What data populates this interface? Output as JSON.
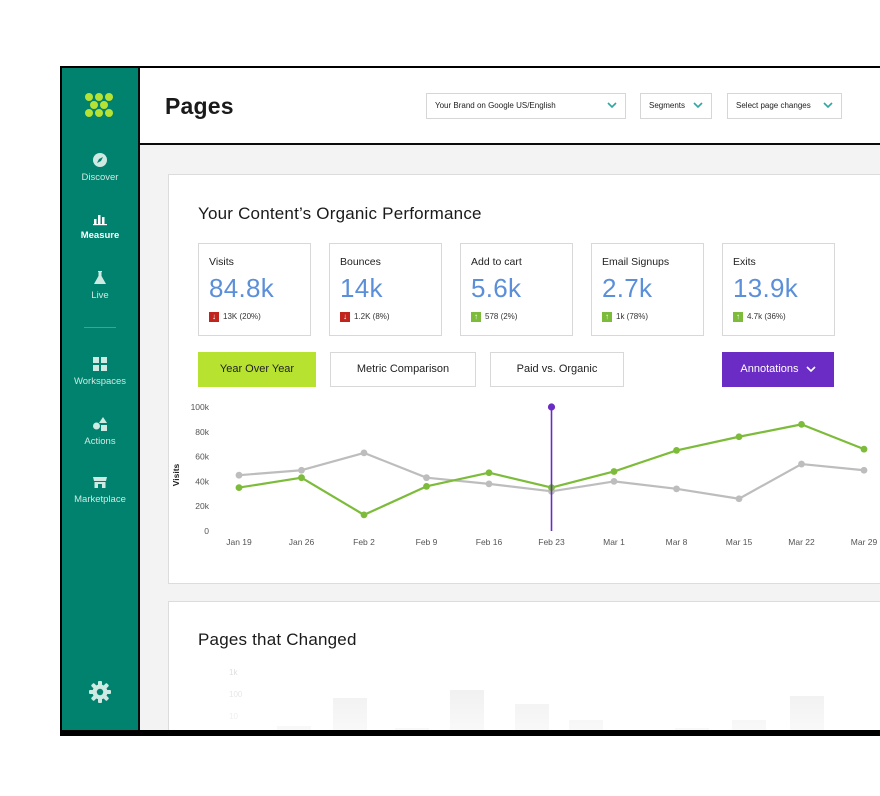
{
  "sidebar": {
    "items": [
      {
        "label": "Discover",
        "icon": "compass-icon"
      },
      {
        "label": "Measure",
        "icon": "bar-chart-icon",
        "active": true
      },
      {
        "label": "Live",
        "icon": "flask-icon"
      },
      {
        "label": "Workspaces",
        "icon": "grid-icon"
      },
      {
        "label": "Actions",
        "icon": "shapes-icon"
      },
      {
        "label": "Marketplace",
        "icon": "store-icon"
      }
    ],
    "accent": "#00826e"
  },
  "header": {
    "title": "Pages",
    "brand_select": "Your Brand on Google US/English",
    "segments_select": "Segments",
    "page_changes_select": "Select page changes"
  },
  "performance": {
    "title": "Your Content’s Organic Performance",
    "metrics": [
      {
        "label": "Visits",
        "value": "84.8k",
        "delta": "13K (20%)",
        "direction": "down"
      },
      {
        "label": "Bounces",
        "value": "14k",
        "delta": "1.2K (8%)",
        "direction": "down"
      },
      {
        "label": "Add to cart",
        "value": "5.6k",
        "delta": "578 (2%)",
        "direction": "up"
      },
      {
        "label": "Email Signups",
        "value": "2.7k",
        "delta": "1k (78%)",
        "direction": "up"
      },
      {
        "label": "Exits",
        "value": "13.9k",
        "delta": "4.7k (36%)",
        "direction": "up"
      }
    ],
    "toggles": [
      "Year Over Year",
      "Metric Comparison",
      "Paid vs. Organic"
    ],
    "annotations_label": "Annotations"
  },
  "chart_data": {
    "type": "line",
    "ylabel": "Visits",
    "ylim": [
      0,
      100000
    ],
    "yticks": [
      "100k",
      "80k",
      "60k",
      "40k",
      "20k",
      "0"
    ],
    "categories": [
      "Jan 19",
      "Jan 26",
      "Feb 2",
      "Feb 9",
      "Feb 16",
      "Feb 23",
      "Mar 1",
      "Mar 8",
      "Mar 15",
      "Mar 22",
      "Mar 29"
    ],
    "series": [
      {
        "color": "#7dbb3a",
        "values": [
          35000,
          43000,
          13000,
          36000,
          47000,
          35000,
          48000,
          65000,
          76000,
          86000,
          66000
        ]
      },
      {
        "color": "#bdbdbd",
        "values": [
          45000,
          49000,
          63000,
          43000,
          38000,
          32000,
          40000,
          34000,
          26000,
          54000,
          49000
        ]
      }
    ],
    "annotation_category": "Feb 23",
    "annotation_color": "#6a2cc5",
    "grid": false
  },
  "changed": {
    "title": "Pages that Changed",
    "ghost_ticks": [
      "1k",
      "100",
      "10"
    ]
  }
}
